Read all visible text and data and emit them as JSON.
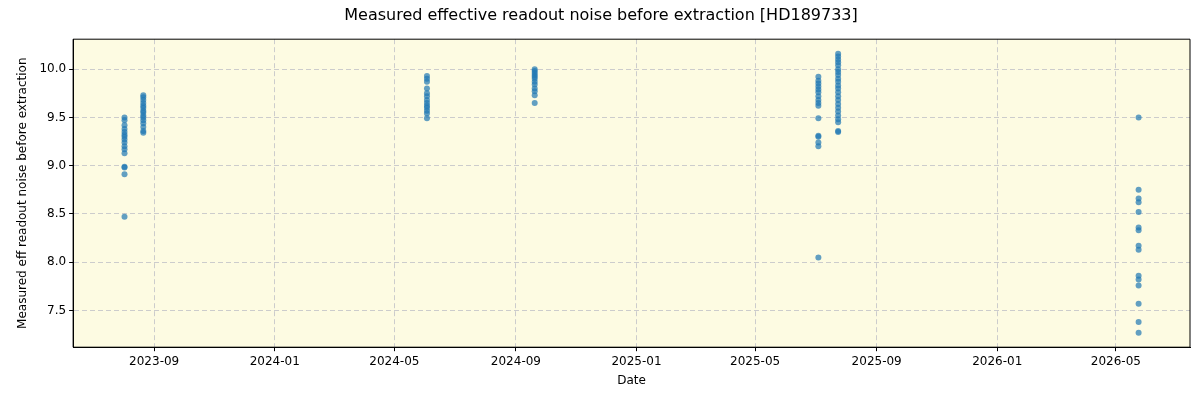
{
  "chart_data": {
    "type": "scatter",
    "title": "Measured effective readout noise before extraction [HD189733]",
    "xlabel": "Date",
    "ylabel": "Measured eff readout noise before extraction",
    "x": [
      "2023-08-02",
      "2023-08-02",
      "2023-08-02",
      "2023-08-02",
      "2023-08-02",
      "2023-08-02",
      "2023-08-02",
      "2023-08-02",
      "2023-08-02",
      "2023-08-02",
      "2023-08-02",
      "2023-08-02",
      "2023-08-02",
      "2023-08-02",
      "2023-08-02",
      "2023-08-02",
      "2023-08-21",
      "2023-08-21",
      "2023-08-21",
      "2023-08-21",
      "2023-08-21",
      "2023-08-21",
      "2023-08-21",
      "2023-08-21",
      "2023-08-21",
      "2023-08-21",
      "2023-08-21",
      "2023-08-21",
      "2023-08-21",
      "2023-08-21",
      "2023-08-21",
      "2024-06-03",
      "2024-06-03",
      "2024-06-03",
      "2024-06-03",
      "2024-06-03",
      "2024-06-03",
      "2024-06-03",
      "2024-06-03",
      "2024-06-03",
      "2024-06-03",
      "2024-06-03",
      "2024-06-03",
      "2024-06-03",
      "2024-09-20",
      "2024-09-20",
      "2024-09-20",
      "2024-09-20",
      "2024-09-20",
      "2024-09-20",
      "2024-09-20",
      "2024-09-20",
      "2024-09-20",
      "2024-09-20",
      "2024-09-20",
      "2024-09-20",
      "2025-07-04",
      "2025-07-04",
      "2025-07-04",
      "2025-07-04",
      "2025-07-04",
      "2025-07-04",
      "2025-07-04",
      "2025-07-04",
      "2025-07-04",
      "2025-07-04",
      "2025-07-04",
      "2025-07-04",
      "2025-07-04",
      "2025-07-04",
      "2025-07-04",
      "2025-07-04",
      "2025-07-24",
      "2025-07-24",
      "2025-07-24",
      "2025-07-24",
      "2025-07-24",
      "2025-07-24",
      "2025-07-24",
      "2025-07-24",
      "2025-07-24",
      "2025-07-24",
      "2025-07-24",
      "2025-07-24",
      "2025-07-24",
      "2025-07-24",
      "2025-07-24",
      "2025-07-24",
      "2025-07-24",
      "2025-07-24",
      "2025-07-24",
      "2025-07-24",
      "2025-07-24",
      "2025-07-24",
      "2025-07-24",
      "2026-05-24",
      "2026-05-24",
      "2026-05-24",
      "2026-05-24",
      "2026-05-24",
      "2026-05-24",
      "2026-05-24",
      "2026-05-24",
      "2026-05-24",
      "2026-05-24",
      "2026-05-24",
      "2026-05-24",
      "2026-05-24",
      "2026-05-24",
      "2026-05-24"
    ],
    "values": [
      9.5,
      9.47,
      9.42,
      9.38,
      9.35,
      9.32,
      9.3,
      9.27,
      9.24,
      9.2,
      9.17,
      9.13,
      8.99,
      8.98,
      8.91,
      8.47,
      9.73,
      9.71,
      9.68,
      9.65,
      9.62,
      9.6,
      9.57,
      9.55,
      9.52,
      9.5,
      9.47,
      9.44,
      9.4,
      9.36,
      9.34,
      9.93,
      9.9,
      9.87,
      9.8,
      9.75,
      9.72,
      9.68,
      9.65,
      9.62,
      9.6,
      9.57,
      9.54,
      9.49,
      10.0,
      9.98,
      9.96,
      9.94,
      9.92,
      9.9,
      9.87,
      9.84,
      9.8,
      9.77,
      9.73,
      9.65,
      9.92,
      9.88,
      9.85,
      9.82,
      9.79,
      9.76,
      9.72,
      9.68,
      9.65,
      9.62,
      9.49,
      9.31,
      9.3,
      9.24,
      9.2,
      8.05,
      10.16,
      10.13,
      10.1,
      10.07,
      10.04,
      10.0,
      9.97,
      9.94,
      9.9,
      9.87,
      9.83,
      9.8,
      9.76,
      9.72,
      9.68,
      9.64,
      9.6,
      9.56,
      9.52,
      9.48,
      9.45,
      9.36,
      9.35,
      9.5,
      8.75,
      8.66,
      8.62,
      8.52,
      8.36,
      8.33,
      8.17,
      8.13,
      7.86,
      7.82,
      7.76,
      7.57,
      7.38,
      7.27
    ],
    "color": "#1f77b4",
    "marker": "circle",
    "grid": true,
    "legend": false,
    "xlim": [
      "2023-06-11",
      "2026-07-15"
    ],
    "xticks": [
      "2023-09",
      "2024-01",
      "2024-05",
      "2024-09",
      "2025-01",
      "2025-05",
      "2025-09",
      "2026-01",
      "2026-05"
    ],
    "ylim": [
      7.12,
      10.31
    ],
    "yticks": [
      7.5,
      {
        "value": 8,
        "label": "8.0"
      },
      8.5,
      {
        "value": 9,
        "label": "9.0"
      },
      9.5,
      {
        "value": 10,
        "label": "10.0"
      }
    ]
  }
}
